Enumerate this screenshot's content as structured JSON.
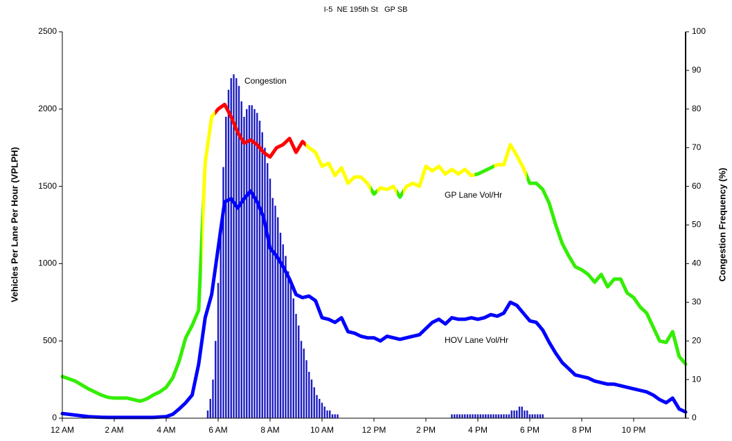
{
  "chart_data": {
    "type": "line",
    "title": "I-5  NE 195th St   GP SB",
    "ylabel": "Vehicles Per Lane Per Hour (VPLPH)",
    "y2label": "Congestion Frequency (%)",
    "xlim": [
      0,
      24
    ],
    "xticks": [
      {
        "value": 0,
        "label": "12 AM"
      },
      {
        "value": 2,
        "label": "2 AM"
      },
      {
        "value": 4,
        "label": "4 AM"
      },
      {
        "value": 6,
        "label": "6 AM"
      },
      {
        "value": 8,
        "label": "8 AM"
      },
      {
        "value": 10,
        "label": "10 AM"
      },
      {
        "value": 12,
        "label": "12 PM"
      },
      {
        "value": 14,
        "label": "2 PM"
      },
      {
        "value": 16,
        "label": "4 PM"
      },
      {
        "value": 18,
        "label": "6 PM"
      },
      {
        "value": 20,
        "label": "8 PM"
      },
      {
        "value": 22,
        "label": "10 PM"
      }
    ],
    "ylim": [
      0,
      2500
    ],
    "yticks": [
      0,
      500,
      1000,
      1500,
      2000,
      2500
    ],
    "y2lim": [
      0,
      100
    ],
    "y2ticks": [
      0,
      10,
      20,
      30,
      40,
      50,
      60,
      70,
      80,
      90,
      100
    ],
    "grid": false,
    "x": [
      0,
      0.25,
      0.5,
      0.75,
      1,
      1.25,
      1.5,
      1.75,
      2,
      2.25,
      2.5,
      2.75,
      3,
      3.25,
      3.5,
      3.75,
      4,
      4.25,
      4.5,
      4.75,
      5,
      5.25,
      5.5,
      5.75,
      6,
      6.25,
      6.5,
      6.75,
      7,
      7.25,
      7.5,
      7.75,
      8,
      8.25,
      8.5,
      8.75,
      9,
      9.25,
      9.5,
      9.75,
      10,
      10.25,
      10.5,
      10.75,
      11,
      11.25,
      11.5,
      11.75,
      12,
      12.25,
      12.5,
      12.75,
      13,
      13.25,
      13.5,
      13.75,
      14,
      14.25,
      14.5,
      14.75,
      15,
      15.25,
      15.5,
      15.75,
      16,
      16.25,
      16.5,
      16.75,
      17,
      17.25,
      17.5,
      17.75,
      18,
      18.25,
      18.5,
      18.75,
      19,
      19.25,
      19.5,
      19.75,
      20,
      20.25,
      20.5,
      20.75,
      21,
      21.25,
      21.5,
      21.75,
      22,
      22.25,
      22.5,
      22.75,
      23,
      23.25,
      23.5,
      23.75,
      24
    ],
    "series": [
      {
        "name": "GP Lane Vol/Hr",
        "type": "line",
        "axis": "y",
        "values": [
          270,
          255,
          240,
          215,
          190,
          170,
          150,
          135,
          130,
          130,
          130,
          120,
          110,
          125,
          150,
          170,
          200,
          260,
          370,
          520,
          600,
          700,
          1650,
          1950,
          2000,
          2030,
          1950,
          1850,
          1780,
          1800,
          1770,
          1720,
          1690,
          1750,
          1770,
          1810,
          1720,
          1790,
          1750,
          1720,
          1630,
          1650,
          1570,
          1620,
          1520,
          1560,
          1560,
          1520,
          1450,
          1490,
          1480,
          1500,
          1430,
          1500,
          1520,
          1500,
          1630,
          1600,
          1630,
          1580,
          1610,
          1580,
          1610,
          1570,
          1580,
          1600,
          1620,
          1640,
          1640,
          1770,
          1700,
          1620,
          1520,
          1520,
          1480,
          1390,
          1250,
          1130,
          1050,
          980,
          960,
          930,
          880,
          930,
          850,
          900,
          900,
          810,
          780,
          720,
          680,
          590,
          500,
          490,
          560,
          400,
          350
        ],
        "point_colors": [
          "#33ee00",
          "#33ee00",
          "#33ee00",
          "#33ee00",
          "#33ee00",
          "#33ee00",
          "#33ee00",
          "#33ee00",
          "#33ee00",
          "#33ee00",
          "#33ee00",
          "#33ee00",
          "#33ee00",
          "#33ee00",
          "#33ee00",
          "#33ee00",
          "#33ee00",
          "#33ee00",
          "#33ee00",
          "#33ee00",
          "#33ee00",
          "#33ee00",
          "#ffff00",
          "#ffff00",
          "#ff0000",
          "#ff0000",
          "#ff0000",
          "#ff0000",
          "#ff0000",
          "#ff0000",
          "#ff0000",
          "#ff0000",
          "#ff0000",
          "#ff0000",
          "#ff0000",
          "#ff0000",
          "#ff0000",
          "#ff0000",
          "#ffff00",
          "#ffff00",
          "#ffff00",
          "#ffff00",
          "#ffff00",
          "#ffff00",
          "#ffff00",
          "#ffff00",
          "#ffff00",
          "#ffff00",
          "#33ee00",
          "#ffff00",
          "#ffff00",
          "#ffff00",
          "#33ee00",
          "#ffff00",
          "#ffff00",
          "#ffff00",
          "#ffff00",
          "#ffff00",
          "#ffff00",
          "#ffff00",
          "#ffff00",
          "#ffff00",
          "#ffff00",
          "#ffff00",
          "#33ee00",
          "#33ee00",
          "#33ee00",
          "#ffff00",
          "#ffff00",
          "#ffff00",
          "#ffff00",
          "#ffff00",
          "#33ee00",
          "#33ee00",
          "#33ee00",
          "#33ee00",
          "#33ee00",
          "#33ee00",
          "#33ee00",
          "#33ee00",
          "#33ee00",
          "#33ee00",
          "#33ee00",
          "#33ee00",
          "#33ee00",
          "#33ee00",
          "#33ee00",
          "#33ee00",
          "#33ee00",
          "#33ee00",
          "#33ee00",
          "#33ee00",
          "#33ee00",
          "#33ee00",
          "#33ee00",
          "#33ee00",
          "#33ee00"
        ]
      },
      {
        "name": "HOV Lane Vol/Hr",
        "type": "line",
        "axis": "y",
        "color": "#0000ff",
        "values": [
          30,
          25,
          20,
          15,
          10,
          8,
          6,
          5,
          5,
          5,
          5,
          5,
          5,
          5,
          5,
          8,
          10,
          25,
          60,
          100,
          150,
          350,
          650,
          800,
          1100,
          1400,
          1420,
          1360,
          1420,
          1470,
          1400,
          1300,
          1100,
          1050,
          980,
          900,
          800,
          780,
          790,
          760,
          650,
          640,
          620,
          650,
          560,
          550,
          530,
          520,
          520,
          500,
          530,
          520,
          510,
          520,
          530,
          540,
          580,
          620,
          640,
          610,
          650,
          640,
          640,
          650,
          640,
          650,
          670,
          660,
          680,
          750,
          730,
          680,
          630,
          620,
          570,
          490,
          420,
          360,
          320,
          280,
          270,
          260,
          240,
          230,
          220,
          220,
          210,
          200,
          190,
          180,
          170,
          150,
          120,
          100,
          130,
          60,
          40
        ]
      },
      {
        "name": "Congestion",
        "type": "bar",
        "axis": "y2",
        "color": "#1c1cc0",
        "x": [
          5.6,
          5.7,
          5.8,
          5.9,
          6.0,
          6.1,
          6.2,
          6.3,
          6.4,
          6.5,
          6.6,
          6.7,
          6.8,
          6.9,
          7.0,
          7.1,
          7.2,
          7.3,
          7.4,
          7.5,
          7.6,
          7.7,
          7.8,
          7.9,
          8.0,
          8.1,
          8.2,
          8.3,
          8.4,
          8.5,
          8.6,
          8.7,
          8.8,
          8.9,
          9.0,
          9.1,
          9.2,
          9.3,
          9.4,
          9.5,
          9.6,
          9.7,
          9.8,
          9.9,
          10.0,
          10.1,
          10.2,
          10.3,
          10.4,
          10.5,
          10.6,
          15.0,
          15.1,
          15.2,
          15.3,
          15.4,
          15.5,
          15.6,
          15.7,
          15.8,
          15.9,
          16.0,
          16.1,
          16.2,
          16.3,
          16.4,
          16.5,
          16.6,
          16.7,
          16.8,
          16.9,
          17.0,
          17.1,
          17.2,
          17.3,
          17.4,
          17.5,
          17.6,
          17.7,
          17.8,
          17.9,
          18.0,
          18.1,
          18.2,
          18.3,
          18.4,
          18.5
        ],
        "values": [
          2,
          5,
          10,
          20,
          35,
          50,
          65,
          78,
          85,
          88,
          89,
          88,
          86,
          82,
          78,
          80,
          81,
          81,
          80,
          79,
          77,
          74,
          70,
          66,
          62,
          57,
          55,
          52,
          48,
          45,
          42,
          38,
          35,
          31,
          27,
          24,
          20,
          18,
          15,
          12,
          10,
          8,
          6,
          5,
          4,
          3,
          2,
          2,
          1,
          1,
          1,
          1,
          1,
          1,
          1,
          1,
          1,
          1,
          1,
          1,
          1,
          1,
          1,
          1,
          1,
          1,
          1,
          1,
          1,
          1,
          1,
          1,
          1,
          1,
          2,
          2,
          2,
          3,
          3,
          2,
          2,
          1,
          1,
          1,
          1,
          1,
          1
        ]
      }
    ]
  }
}
